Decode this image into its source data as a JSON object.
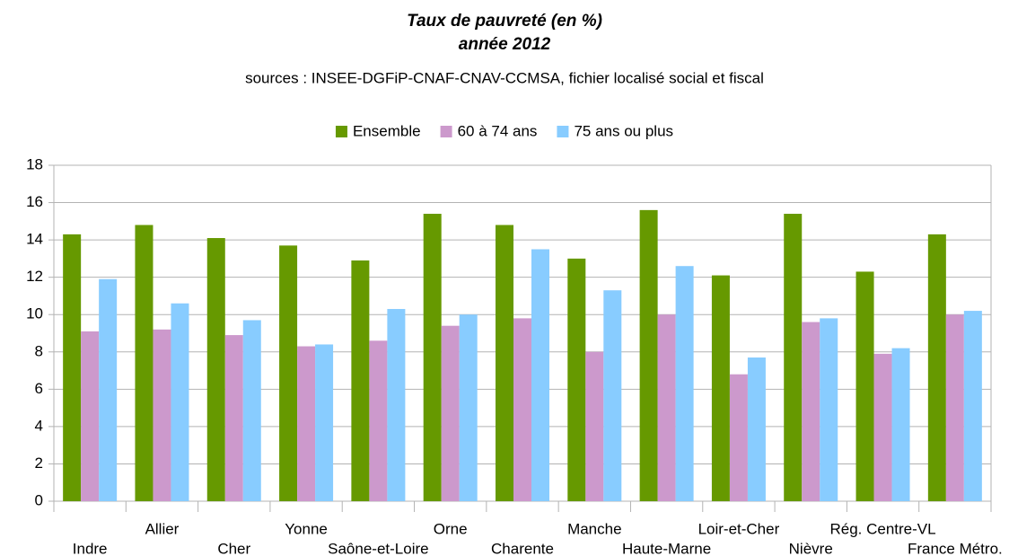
{
  "chart_data": {
    "type": "bar",
    "title": [
      "Taux de pauvreté (en %)",
      "année 2012"
    ],
    "subtitle": "sources : INSEE-DGFiP-CNAF-CNAV-CCMSA, fichier localisé social et fiscal",
    "categories": [
      "Indre",
      "Allier",
      "Cher",
      "Yonne",
      "Saône-et-Loire",
      "Orne",
      "Charente",
      "Manche",
      "Haute-Marne",
      "Loir-et-Cher",
      "Nièvre",
      "Rég. Centre-VL",
      "France Métro."
    ],
    "series": [
      {
        "name": "Ensemble",
        "color": "#669900",
        "values": [
          14.3,
          14.8,
          14.1,
          13.7,
          12.9,
          15.4,
          14.8,
          13.0,
          15.6,
          12.1,
          15.4,
          12.3,
          14.3
        ]
      },
      {
        "name": "60 à 74 ans",
        "color": "#cc99cc",
        "values": [
          9.1,
          9.2,
          8.9,
          8.3,
          8.6,
          9.4,
          9.8,
          8.0,
          10.0,
          6.8,
          9.6,
          7.9,
          10.0
        ]
      },
      {
        "name": "75 ans ou plus",
        "color": "#88ccff",
        "values": [
          11.9,
          10.6,
          9.7,
          8.4,
          10.3,
          10.0,
          13.5,
          11.3,
          12.6,
          7.7,
          9.8,
          8.2,
          10.2
        ]
      }
    ],
    "ylim": [
      0,
      18
    ],
    "yticks": [
      0,
      2,
      4,
      6,
      8,
      10,
      12,
      14,
      16,
      18
    ],
    "grid": true,
    "legend": "top"
  }
}
